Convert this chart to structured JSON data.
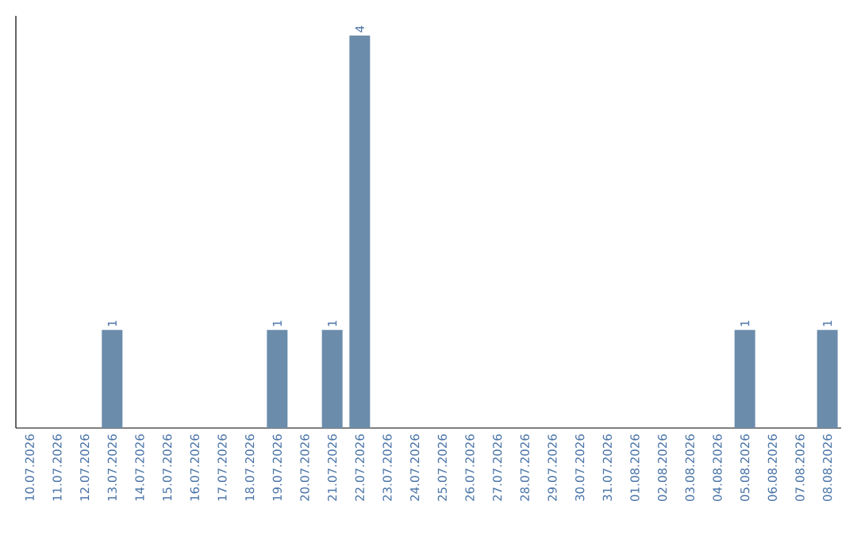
{
  "chart_data": {
    "type": "bar",
    "categories": [
      "10.07.2026",
      "11.07.2026",
      "12.07.2026",
      "13.07.2026",
      "14.07.2026",
      "15.07.2026",
      "16.07.2026",
      "17.07.2026",
      "18.07.2026",
      "19.07.2026",
      "20.07.2026",
      "21.07.2026",
      "22.07.2026",
      "23.07.2026",
      "24.07.2026",
      "25.07.2026",
      "26.07.2026",
      "27.07.2026",
      "28.07.2026",
      "29.07.2026",
      "30.07.2026",
      "31.07.2026",
      "01.08.2026",
      "02.08.2026",
      "03.08.2026",
      "04.08.2026",
      "05.08.2026",
      "06.08.2026",
      "07.08.2026",
      "08.08.2026"
    ],
    "values": [
      0,
      0,
      0,
      1,
      0,
      0,
      0,
      0,
      0,
      1,
      0,
      1,
      4,
      0,
      0,
      0,
      0,
      0,
      0,
      0,
      0,
      0,
      0,
      0,
      0,
      0,
      1,
      0,
      0,
      1
    ],
    "value_labels": [
      null,
      null,
      null,
      "1",
      null,
      null,
      null,
      null,
      null,
      "1",
      null,
      "1",
      "4",
      null,
      null,
      null,
      null,
      null,
      null,
      null,
      null,
      null,
      null,
      null,
      null,
      null,
      "1",
      null,
      null,
      "1"
    ],
    "color": "#6b8cab",
    "tick_labels": "x"
  }
}
